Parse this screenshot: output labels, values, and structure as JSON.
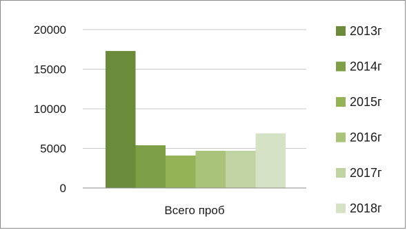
{
  "chart_data": {
    "type": "bar",
    "categories": [
      "Всего проб"
    ],
    "series": [
      {
        "name": "2013г",
        "values": [
          17300
        ],
        "color": "#6b8a3a"
      },
      {
        "name": "2014г",
        "values": [
          5400
        ],
        "color": "#7f9f46"
      },
      {
        "name": "2015г",
        "values": [
          4100
        ],
        "color": "#93b356"
      },
      {
        "name": "2016г",
        "values": [
          4700
        ],
        "color": "#a9c47a"
      },
      {
        "name": "2017г",
        "values": [
          4700
        ],
        "color": "#c0d4a3"
      },
      {
        "name": "2018г",
        "values": [
          6900
        ],
        "color": "#d6e2c5"
      }
    ],
    "yticks": [
      "0",
      "5000",
      "10000",
      "15000",
      "20000"
    ],
    "ylim": [
      0,
      20000
    ],
    "grid": true,
    "legend_position": "right",
    "gridline_color": "#c8c8c8",
    "axis_color": "#8a8a8a"
  }
}
